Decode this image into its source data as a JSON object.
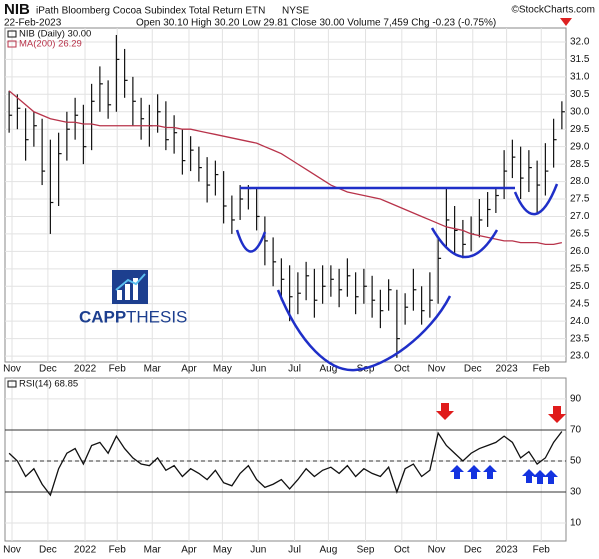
{
  "chart_data": [
    {
      "type": "ohlc",
      "title": "NIB",
      "subtitle": "iPath Bloomberg Cocoa Subindex Total Return ETN",
      "exchange": "NYSE",
      "source": "©StockCharts.com",
      "date": "22-Feb-2023",
      "quote": "Open 30.10 High 30.20 Low 29.81 Close 30.00 Volume 7,459 Chg -0.23 (-0.75%)",
      "logo": [
        "CAPP",
        "THESIS"
      ],
      "series": [
        {
          "name": "NIB (Daily) 30.00",
          "color": "#111111",
          "high": [
            30.6,
            30.5,
            30.1,
            30.0,
            29.8,
            29.2,
            29.4,
            30.0,
            30.4,
            30.2,
            30.8,
            31.3,
            30.9,
            32.2,
            31.8,
            31.0,
            30.4,
            30.2,
            30.5,
            30.3,
            29.9,
            29.5,
            29.3,
            29.0,
            28.7,
            28.6,
            28.3,
            27.6,
            27.9,
            27.9,
            27.8,
            27.0,
            26.4,
            25.8,
            25.6,
            25.4,
            25.7,
            25.5,
            25.6,
            25.6,
            25.5,
            25.8,
            25.4,
            25.5,
            25.3,
            24.9,
            25.2,
            24.9,
            24.8,
            25.5,
            25.0,
            25.4,
            26.4,
            27.8,
            27.3,
            26.9,
            27.0,
            27.5,
            27.7,
            27.8,
            28.9,
            29.2,
            29.0,
            28.9,
            28.6,
            29.1,
            29.8,
            30.3
          ],
          "low": [
            29.4,
            29.5,
            28.6,
            29.0,
            27.9,
            26.5,
            27.3,
            28.6,
            29.2,
            28.5,
            28.9,
            30.0,
            29.8,
            30.0,
            30.4,
            29.6,
            29.2,
            29.0,
            29.4,
            28.9,
            28.8,
            28.2,
            28.3,
            28.0,
            27.4,
            27.6,
            26.8,
            26.5,
            26.9,
            27.2,
            26.6,
            25.6,
            25.0,
            24.6,
            24.0,
            24.2,
            24.6,
            24.1,
            24.5,
            24.7,
            24.4,
            24.7,
            24.2,
            24.5,
            24.1,
            23.8,
            24.3,
            22.95,
            23.9,
            24.3,
            23.9,
            24.1,
            24.5,
            26.1,
            25.9,
            25.8,
            26.0,
            26.4,
            26.7,
            27.1,
            27.5,
            28.1,
            27.5,
            27.7,
            27.1,
            27.6,
            28.4,
            29.5
          ],
          "close": [
            29.9,
            30.1,
            29.2,
            29.6,
            28.3,
            27.4,
            28.8,
            29.5,
            29.9,
            29.0,
            30.3,
            30.8,
            30.2,
            31.5,
            30.9,
            30.3,
            29.8,
            29.6,
            30.0,
            29.2,
            29.4,
            28.6,
            28.9,
            28.4,
            27.9,
            28.2,
            27.3,
            26.9,
            27.5,
            27.8,
            27.0,
            26.3,
            25.7,
            25.2,
            24.7,
            24.8,
            25.3,
            24.6,
            25.0,
            25.2,
            24.9,
            25.3,
            24.7,
            25.0,
            24.6,
            24.3,
            24.9,
            23.5,
            24.4,
            24.9,
            24.3,
            24.6,
            25.8,
            26.9,
            26.6,
            26.2,
            26.5,
            26.9,
            27.2,
            27.6,
            28.3,
            28.7,
            28.1,
            28.4,
            27.9,
            28.3,
            29.2,
            30.0
          ]
        },
        {
          "name": "MA(200) 26.29",
          "color": "#b8334a",
          "values": [
            30.6,
            30.4,
            30.2,
            30.0,
            29.9,
            29.8,
            29.75,
            29.7,
            29.7,
            29.65,
            29.65,
            29.6,
            29.6,
            29.6,
            29.6,
            29.6,
            29.6,
            29.6,
            29.6,
            29.55,
            29.55,
            29.5,
            29.5,
            29.45,
            29.4,
            29.35,
            29.3,
            29.25,
            29.2,
            29.15,
            29.1,
            29.0,
            28.9,
            28.8,
            28.65,
            28.5,
            28.35,
            28.2,
            28.05,
            27.9,
            27.8,
            27.7,
            27.65,
            27.6,
            27.55,
            27.5,
            27.4,
            27.3,
            27.2,
            27.1,
            27.0,
            26.9,
            26.8,
            26.7,
            26.65,
            26.6,
            26.5,
            26.45,
            26.4,
            26.35,
            26.3,
            26.3,
            26.25,
            26.25,
            26.25,
            26.2,
            26.2,
            26.25
          ]
        }
      ],
      "xlim": [
        0,
        68
      ],
      "xticks": [
        {
          "value": 0.85,
          "label": "Nov"
        },
        {
          "value": 5.2,
          "label": "Dec"
        },
        {
          "value": 9.7,
          "label": "2022"
        },
        {
          "value": 13.6,
          "label": "Feb"
        },
        {
          "value": 17.85,
          "label": "Mar"
        },
        {
          "value": 22.3,
          "label": "Apr"
        },
        {
          "value": 26.35,
          "label": "May"
        },
        {
          "value": 30.7,
          "label": "Jun"
        },
        {
          "value": 35.1,
          "label": "Jul"
        },
        {
          "value": 39.2,
          "label": "Aug"
        },
        {
          "value": 43.7,
          "label": "Sep"
        },
        {
          "value": 48.1,
          "label": "Oct"
        },
        {
          "value": 52.3,
          "label": "Nov"
        },
        {
          "value": 56.7,
          "label": "Dec"
        },
        {
          "value": 60.8,
          "label": "2023"
        },
        {
          "value": 65.0,
          "label": "Feb"
        }
      ],
      "ylim": [
        22.83,
        32.4
      ],
      "yticks": [
        {
          "value": 23,
          "label": "23.0"
        },
        23.5,
        {
          "value": 24,
          "label": "24.0"
        },
        24.5,
        {
          "value": 25,
          "label": "25.0"
        },
        25.5,
        {
          "value": 26,
          "label": "26.0"
        },
        26.5,
        {
          "value": 27,
          "label": "27.0"
        },
        27.5,
        {
          "value": 28,
          "label": "28.0"
        },
        28.5,
        {
          "value": 29,
          "label": "29.0"
        },
        29.5,
        {
          "value": 30,
          "label": "30.0"
        },
        30.5,
        {
          "value": 31,
          "label": "31.0"
        },
        31.5,
        {
          "value": 32,
          "label": "32.0"
        }
      ],
      "grid": true
    },
    {
      "type": "line",
      "series": [
        {
          "name": "RSI(14) 68.85",
          "color": "#111111",
          "values": [
            55,
            50,
            40,
            45,
            35,
            28,
            45,
            55,
            58,
            48,
            60,
            62,
            55,
            66,
            58,
            52,
            48,
            47,
            52,
            44,
            47,
            40,
            45,
            42,
            38,
            44,
            36,
            34,
            42,
            47,
            38,
            33,
            35,
            38,
            32,
            38,
            45,
            40,
            44,
            46,
            42,
            47,
            40,
            45,
            42,
            40,
            46,
            30,
            45,
            48,
            40,
            44,
            68,
            60,
            55,
            50,
            55,
            58,
            60,
            62,
            66,
            62,
            52,
            56,
            48,
            52,
            62,
            69
          ]
        }
      ],
      "xlim": [
        0,
        68
      ],
      "xticks": [
        {
          "value": 0.85,
          "label": "Nov"
        },
        {
          "value": 5.2,
          "label": "Dec"
        },
        {
          "value": 9.7,
          "label": "2022"
        },
        {
          "value": 13.6,
          "label": "Feb"
        },
        {
          "value": 17.85,
          "label": "Mar"
        },
        {
          "value": 22.3,
          "label": "Apr"
        },
        {
          "value": 26.35,
          "label": "May"
        },
        {
          "value": 30.7,
          "label": "Jun"
        },
        {
          "value": 35.1,
          "label": "Jul"
        },
        {
          "value": 39.2,
          "label": "Aug"
        },
        {
          "value": 43.7,
          "label": "Sep"
        },
        {
          "value": 48.1,
          "label": "Oct"
        },
        {
          "value": 52.3,
          "label": "Nov"
        },
        {
          "value": 56.7,
          "label": "Dec"
        },
        {
          "value": 60.8,
          "label": "2023"
        },
        {
          "value": 65.0,
          "label": "Feb"
        }
      ],
      "ylim": [
        -1.6,
        103.5
      ],
      "yticks": [
        10,
        30,
        50,
        70,
        90
      ],
      "bands": [
        30,
        70
      ],
      "midline": 50,
      "grid": true
    }
  ]
}
